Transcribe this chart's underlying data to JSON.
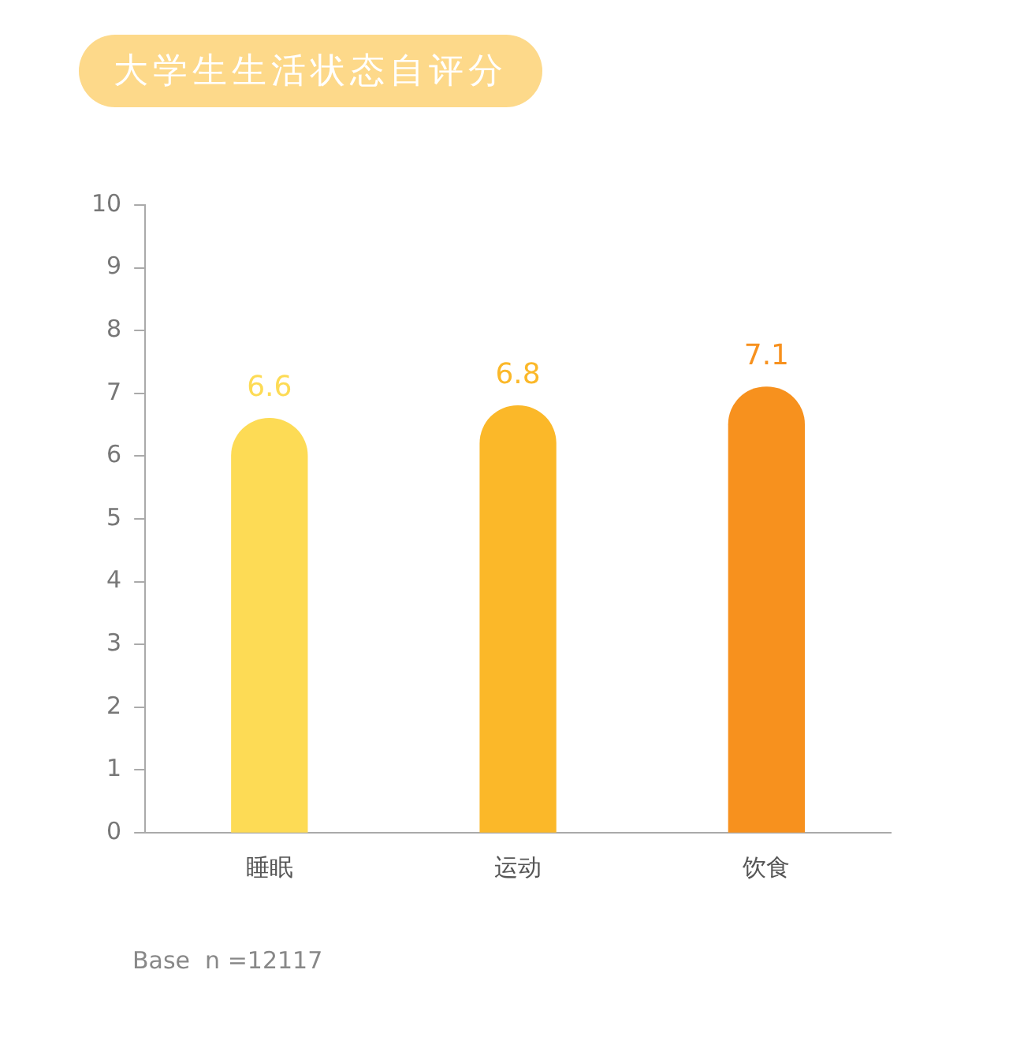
{
  "chart_data": {
    "type": "bar",
    "title": "大学生生活状态自评分",
    "categories": [
      "睡眠",
      "运动",
      "饮食"
    ],
    "values": [
      6.6,
      6.8,
      7.1
    ],
    "colors": [
      "#fddb55",
      "#fbb829",
      "#f7911e"
    ],
    "ylim": [
      0,
      10
    ],
    "yticks": [
      0,
      1,
      2,
      3,
      4,
      5,
      6,
      7,
      8,
      9,
      10
    ],
    "grid": false,
    "legend": false,
    "data_labels": true,
    "annotations": [
      "Base  n =12117"
    ]
  }
}
